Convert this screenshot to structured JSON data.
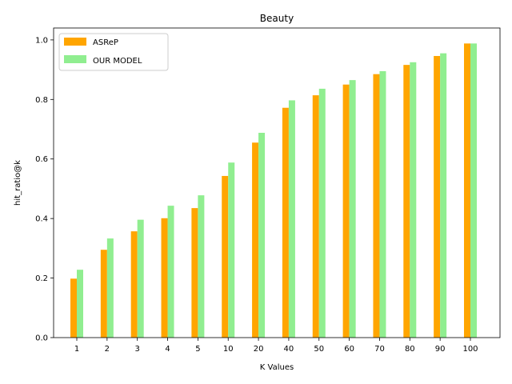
{
  "chart_data": {
    "type": "bar",
    "title": "Beauty",
    "xlabel": "K Values",
    "ylabel": "hit_ratio@k",
    "categories": [
      "1",
      "2",
      "3",
      "4",
      "5",
      "10",
      "20",
      "40",
      "50",
      "60",
      "70",
      "80",
      "90",
      "100"
    ],
    "series": [
      {
        "name": "ASReP",
        "color": "#ffa500",
        "values": [
          0.198,
          0.295,
          0.357,
          0.401,
          0.435,
          0.543,
          0.655,
          0.772,
          0.814,
          0.85,
          0.885,
          0.916,
          0.946,
          0.988
        ]
      },
      {
        "name": "OUR MODEL",
        "color": "#90ee90",
        "values": [
          0.228,
          0.333,
          0.396,
          0.443,
          0.478,
          0.588,
          0.688,
          0.797,
          0.836,
          0.865,
          0.895,
          0.925,
          0.955,
          0.988
        ]
      }
    ],
    "ylim": [
      0,
      1.04
    ],
    "yticks": [
      "0.0",
      "0.2",
      "0.4",
      "0.6",
      "0.8",
      "1.0"
    ],
    "grid": false,
    "legend_position": "upper-left"
  }
}
